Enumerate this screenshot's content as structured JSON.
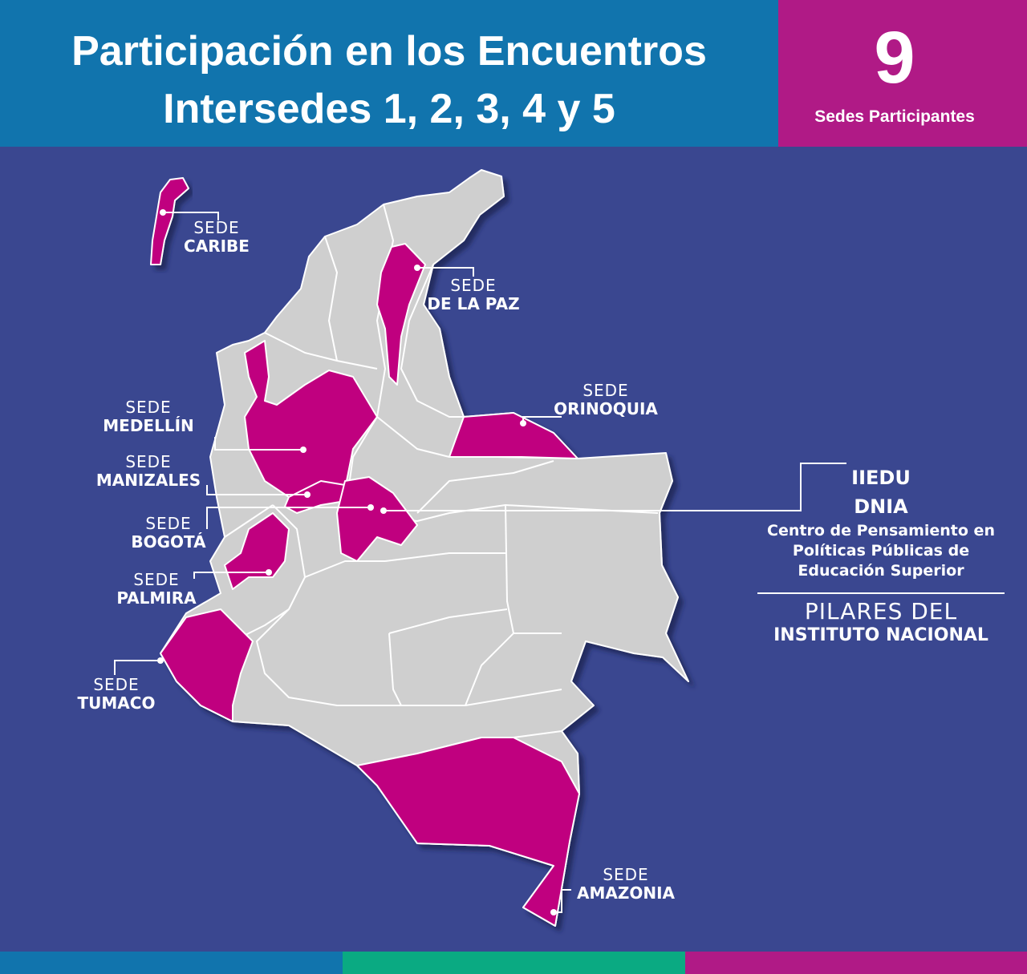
{
  "header": {
    "title_line1": "Participación en los Encuentros",
    "title_line2": "Intersedes 1, 2, 3, 4 y 5"
  },
  "counter": {
    "number": "9",
    "label": "Sedes Participantes"
  },
  "sedes": [
    {
      "id": "caribe",
      "prefix": "SEDE",
      "name": "CARIBE"
    },
    {
      "id": "de-la-paz",
      "prefix": "SEDE",
      "name": "DE LA PAZ"
    },
    {
      "id": "orinoquia",
      "prefix": "SEDE",
      "name": "ORINOQUIA"
    },
    {
      "id": "medellin",
      "prefix": "SEDE",
      "name": "MEDELLÍN"
    },
    {
      "id": "manizales",
      "prefix": "SEDE",
      "name": "MANIZALES"
    },
    {
      "id": "bogota",
      "prefix": "SEDE",
      "name": "BOGOTÁ"
    },
    {
      "id": "palmira",
      "prefix": "SEDE",
      "name": "PALMIRA"
    },
    {
      "id": "tumaco",
      "prefix": "SEDE",
      "name": "TUMACO"
    },
    {
      "id": "amazonia",
      "prefix": "SEDE",
      "name": "AMAZONIA"
    }
  ],
  "bogota_info": {
    "iiedu": "IIEDU",
    "dnia": "DNIA",
    "centro_line1": "Centro de Pensamiento en",
    "centro_line2": "Políticas Públicas de",
    "centro_line3": "Educación Superior",
    "pilares_line1": "PILARES DEL",
    "pilares_line2": "INSTITUTO NACIONAL"
  },
  "colors": {
    "header_blue": "#1174ad",
    "counter_magenta": "#b01a86",
    "background": "#3a4790",
    "map_gray": "#cfcfcf",
    "highlight": "#c0007f",
    "bar_blue": "#1174ad",
    "bar_green": "#0aaa82",
    "bar_magenta": "#b01a86"
  }
}
